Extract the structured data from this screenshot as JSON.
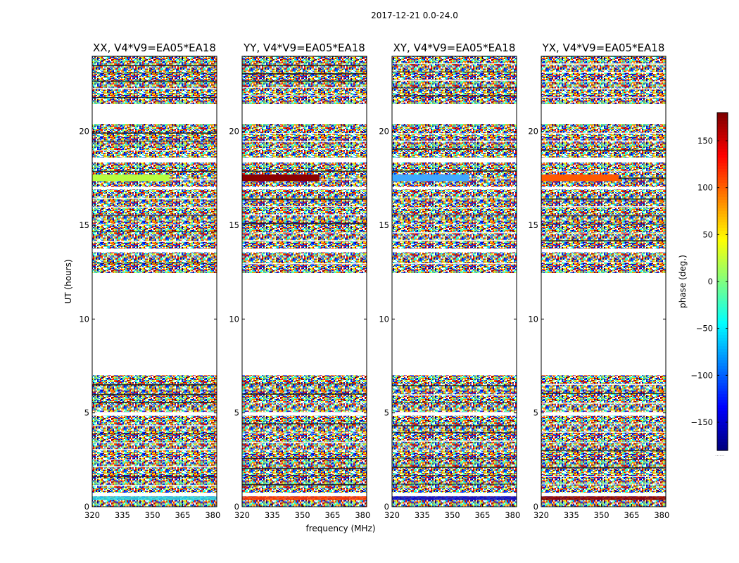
{
  "chart_data": {
    "type": "heatmap",
    "suptitle": "2017-12-21 0.0-24.0",
    "xlabel": "frequency (MHz)",
    "ylabel": "UT (hours)",
    "xlim": [
      320,
      382
    ],
    "ylim": [
      0,
      24
    ],
    "xticks": [
      320,
      335,
      350,
      365,
      380
    ],
    "yticks": [
      0,
      5,
      10,
      15,
      20
    ],
    "colormap": "jet",
    "panels": [
      {
        "title": "XX, V4*V9=EA05*EA18",
        "band_color": "#b8ff3f",
        "band_color_2": "#2bd7e6"
      },
      {
        "title": "YY, V4*V9=EA05*EA18",
        "band_color": "#8b0000",
        "band_color_2": "#ff3a00"
      },
      {
        "title": "XY, V4*V9=EA05*EA18",
        "band_color": "#3fa9ff",
        "band_color_2": "#0c0cc4"
      },
      {
        "title": "YX, V4*V9=EA05*EA18",
        "band_color": "#ff5a00",
        "band_color_2": "#8b0000"
      }
    ],
    "data_hours": [
      [
        0.0,
        0.55
      ],
      [
        0.75,
        4.85
      ],
      [
        5.05,
        7.0
      ],
      [
        12.45,
        13.55
      ],
      [
        13.75,
        16.9
      ],
      [
        17.05,
        18.35
      ],
      [
        18.6,
        20.4
      ],
      [
        21.45,
        24.0
      ]
    ],
    "gap_hours": [
      [
        7.0,
        12.45
      ],
      [
        20.4,
        21.45
      ]
    ],
    "highlight_hours": [
      17.35,
      17.7
    ],
    "colorbar": {
      "label": "phase (deg.)",
      "range": [
        -180,
        180
      ],
      "ticks": [
        -150,
        -100,
        -50,
        0,
        50,
        100,
        150
      ],
      "tick_labels": [
        "−150",
        "−100",
        "−50",
        "0",
        "50",
        "100",
        "150"
      ],
      "footnote": "......"
    }
  }
}
